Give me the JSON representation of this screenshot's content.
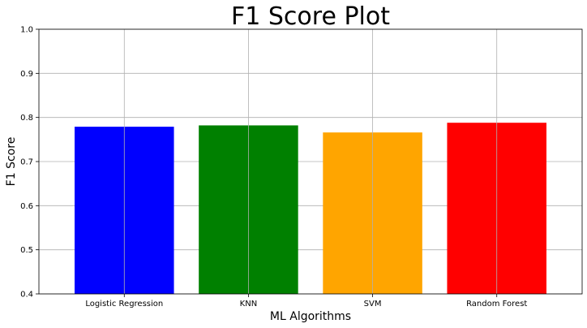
{
  "chart_data": {
    "type": "bar",
    "title": "F1 Score Plot",
    "xlabel": "ML Algorithms",
    "ylabel": "F1 Score",
    "categories": [
      "Logistic Regression",
      "KNN",
      "SVM",
      "Random Forest"
    ],
    "values": [
      0.779,
      0.782,
      0.766,
      0.788
    ],
    "colors": [
      "#0000ff",
      "#008000",
      "#ffa500",
      "#ff0000"
    ],
    "ylim": [
      0.4,
      1.0
    ],
    "yticks": [
      "0.4",
      "0.5",
      "0.6",
      "0.7",
      "0.8",
      "0.9",
      "1.0"
    ],
    "grid": true
  }
}
